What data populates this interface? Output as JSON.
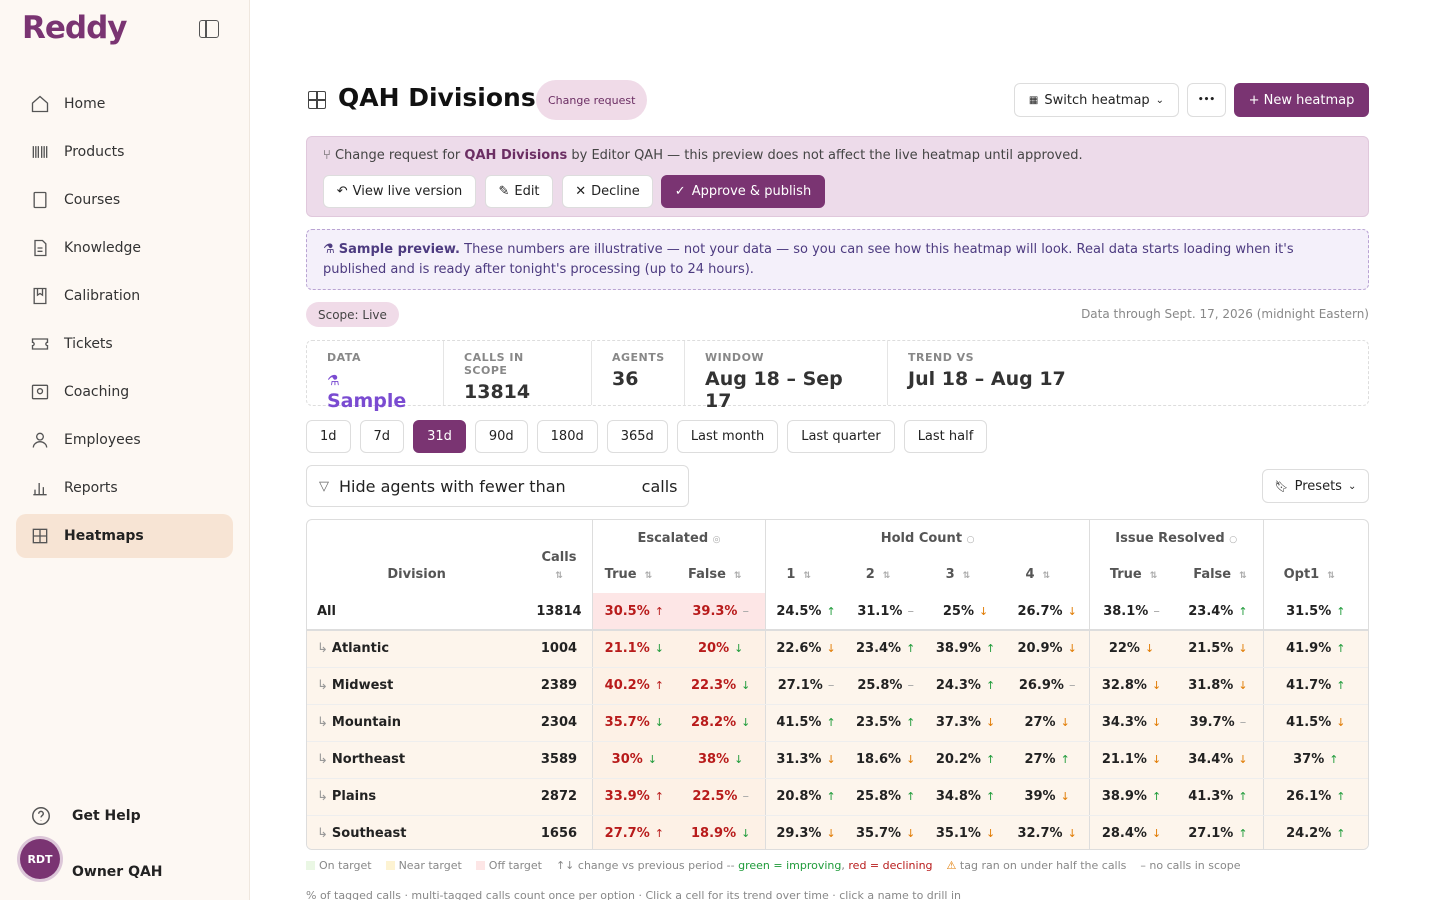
{
  "app": {
    "logo": "Reddy"
  },
  "sidebar": {
    "items": [
      {
        "label": "Home",
        "icon": "home-icon"
      },
      {
        "label": "Products",
        "icon": "barcode-icon"
      },
      {
        "label": "Courses",
        "icon": "book-icon"
      },
      {
        "label": "Knowledge",
        "icon": "document-icon"
      },
      {
        "label": "Calibration",
        "icon": "bookmark-book-icon"
      },
      {
        "label": "Tickets",
        "icon": "ticket-icon"
      },
      {
        "label": "Coaching",
        "icon": "coaching-icon"
      },
      {
        "label": "Employees",
        "icon": "user-icon"
      },
      {
        "label": "Reports",
        "icon": "bar-chart-icon"
      },
      {
        "label": "Heatmaps",
        "icon": "grid-icon"
      }
    ],
    "help": "Get Help",
    "user_initials": "RDT",
    "user_name": "Owner QAH"
  },
  "header": {
    "title": "QAH Divisions",
    "badge": "Change request",
    "switch": "Switch heatmap",
    "more": "•••",
    "new": "+ New heatmap"
  },
  "change_request": {
    "prefix": "Change request for",
    "name": "QAH Divisions",
    "suffix": "by Editor QAH — this preview does not affect the live heatmap until approved.",
    "view": "View live version",
    "edit": "Edit",
    "decline": "Decline",
    "approve": "Approve & publish"
  },
  "sample": {
    "title": "Sample preview.",
    "text": "These numbers are illustrative — not your data — so you can see how this heatmap will look. Real data starts loading when it's published and is ready after tonight's processing (up to 24 hours)."
  },
  "scope": "Scope: Live",
  "data_through": "Data through Sept. 17, 2026 (midnight Eastern)",
  "stats": [
    {
      "label": "DATA",
      "value": "Sample"
    },
    {
      "label": "CALLS IN SCOPE",
      "value": "13814"
    },
    {
      "label": "AGENTS",
      "value": "36"
    },
    {
      "label": "WINDOW",
      "value": "Aug 18 – Sep 17"
    },
    {
      "label": "TREND VS",
      "value": "Jul 18 – Aug 17"
    }
  ],
  "ranges": [
    "1d",
    "7d",
    "31d",
    "90d",
    "180d",
    "365d",
    "Last month",
    "Last quarter",
    "Last half"
  ],
  "filter": {
    "prefix": "Hide agents with fewer than",
    "suffix": "calls"
  },
  "presets": "Presets",
  "table": {
    "division_header": "Division",
    "calls_header": "Calls",
    "groups": [
      "Escalated",
      "Hold Count",
      "Issue Resolved"
    ],
    "cols": [
      "True",
      "False",
      "1",
      "2",
      "3",
      "4",
      "True",
      "False",
      "Opt1"
    ],
    "rows": [
      {
        "name": "All",
        "calls": "13814",
        "v": [
          "30.5%",
          "39.3%",
          "24.5%",
          "31.1%",
          "25%",
          "26.7%",
          "38.1%",
          "23.4%",
          "31.5%"
        ],
        "t": [
          "u",
          "d0",
          "u",
          "d0",
          "d",
          "d",
          "d0",
          "u",
          "u"
        ]
      },
      {
        "name": "Atlantic",
        "calls": "1004",
        "v": [
          "21.1%",
          "20%",
          "22.6%",
          "23.4%",
          "38.9%",
          "20.9%",
          "22%",
          "21.5%",
          "41.9%"
        ],
        "t": [
          "d",
          "d",
          "d",
          "u",
          "u",
          "d",
          "d",
          "d",
          "u"
        ]
      },
      {
        "name": "Midwest",
        "calls": "2389",
        "v": [
          "40.2%",
          "22.3%",
          "27.1%",
          "25.8%",
          "24.3%",
          "26.9%",
          "32.8%",
          "31.8%",
          "41.7%"
        ],
        "t": [
          "u",
          "d",
          "d0",
          "d0",
          "u",
          "d0",
          "d",
          "d",
          "u"
        ]
      },
      {
        "name": "Mountain",
        "calls": "2304",
        "v": [
          "35.7%",
          "28.2%",
          "41.5%",
          "23.5%",
          "37.3%",
          "27%",
          "34.3%",
          "39.7%",
          "41.5%"
        ],
        "t": [
          "d",
          "d",
          "u",
          "u",
          "d",
          "d",
          "d",
          "d0",
          "d"
        ]
      },
      {
        "name": "Northeast",
        "calls": "3589",
        "v": [
          "30%",
          "38%",
          "31.3%",
          "18.6%",
          "20.2%",
          "27%",
          "21.1%",
          "34.4%",
          "37%"
        ],
        "t": [
          "d",
          "d",
          "d",
          "d",
          "u",
          "u",
          "d",
          "d",
          "u"
        ]
      },
      {
        "name": "Plains",
        "calls": "2872",
        "v": [
          "33.9%",
          "22.5%",
          "20.8%",
          "25.8%",
          "34.8%",
          "39%",
          "38.9%",
          "41.3%",
          "26.1%"
        ],
        "t": [
          "u",
          "d0",
          "u",
          "u",
          "u",
          "d",
          "u",
          "u",
          "u"
        ]
      },
      {
        "name": "Southeast",
        "calls": "1656",
        "v": [
          "27.7%",
          "18.9%",
          "29.3%",
          "35.7%",
          "35.1%",
          "32.7%",
          "28.4%",
          "27.1%",
          "24.2%"
        ],
        "t": [
          "u",
          "d",
          "d",
          "d",
          "d",
          "d",
          "d",
          "u",
          "u"
        ]
      }
    ]
  },
  "legend": {
    "on": "On target",
    "near": "Near target",
    "off": "Off target",
    "arrows": "↑↓ change vs previous period --",
    "green": "green = improving",
    "comma": ",",
    "red": "red = declining",
    "warn": "tag ran on under half the calls",
    "none": "– no calls in scope"
  },
  "footnote": "% of tagged calls · multi-tagged calls count once per option · Click a cell for its trend over time · click a name to drill in"
}
